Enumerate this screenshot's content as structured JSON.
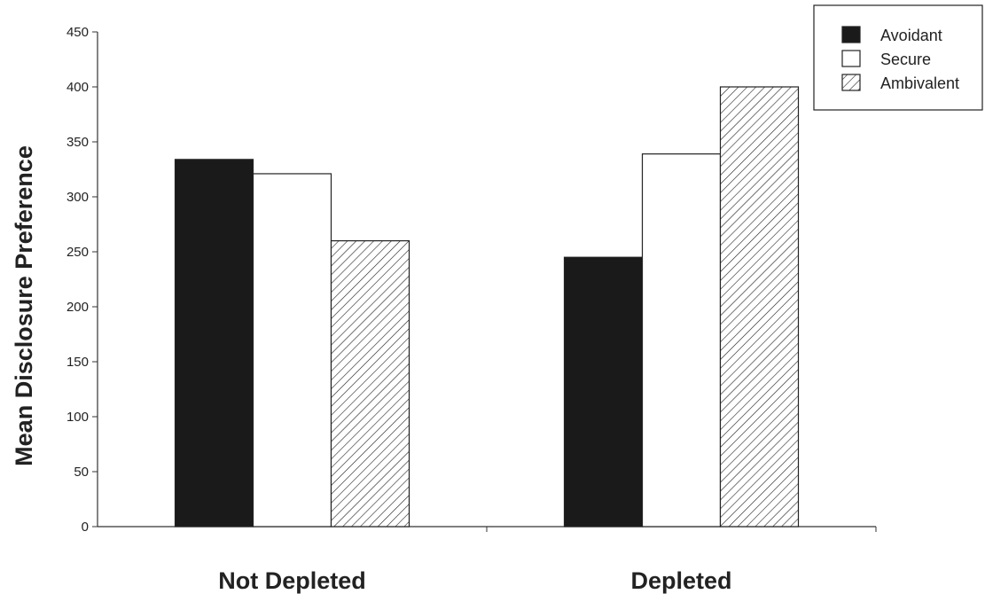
{
  "chart_data": {
    "type": "bar",
    "categories": [
      "Not Depleted",
      "Depleted"
    ],
    "series": [
      {
        "name": "Avoidant",
        "values": [
          334,
          245
        ],
        "color": "#1a1a1a",
        "pattern": "solid"
      },
      {
        "name": "Secure",
        "values": [
          321,
          339
        ],
        "color": "#ffffff",
        "pattern": "none"
      },
      {
        "name": "Ambivalent",
        "values": [
          260,
          400
        ],
        "color": "#ffffff",
        "pattern": "hatch"
      }
    ],
    "ylabel": "Mean Disclosure Preference",
    "xlabel": "",
    "ylim": [
      0,
      450
    ],
    "yticks": [
      0,
      50,
      100,
      150,
      200,
      250,
      300,
      350,
      400,
      450
    ],
    "grid": false,
    "legend_position": "top-right"
  }
}
